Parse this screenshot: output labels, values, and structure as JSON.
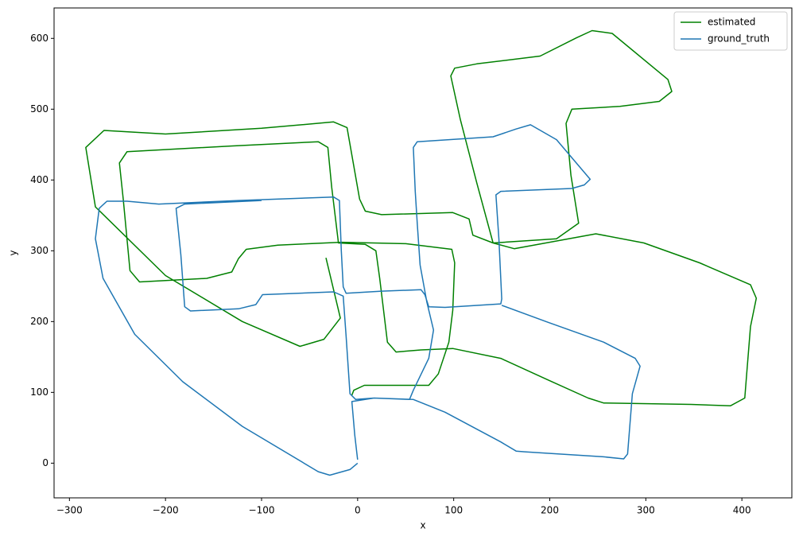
{
  "chart_data": {
    "type": "line",
    "xlabel": "x",
    "ylabel": "y",
    "xlim": [
      -316,
      452
    ],
    "ylim": [
      -49,
      643
    ],
    "xticks": [
      {
        "value": -300,
        "label": "−300"
      },
      {
        "value": -200,
        "label": "−200"
      },
      {
        "value": -100,
        "label": "−100"
      },
      0,
      100,
      200,
      300,
      400
    ],
    "yticks": [
      0,
      100,
      200,
      300,
      400,
      500,
      600
    ],
    "legend": "upper right",
    "series": [
      {
        "name": "estimated",
        "color": "#008000",
        "x": [
          -33,
          -18,
          -35,
          -60,
          -120,
          -200,
          -273,
          -283,
          -264,
          -200,
          -100,
          -25,
          -11,
          2,
          8,
          25,
          99,
          116,
          120,
          141,
          207,
          230,
          222,
          217,
          223,
          273,
          314,
          327,
          323,
          265,
          244,
          228,
          190,
          124,
          101,
          97,
          107,
          124,
          141,
          163,
          248,
          298,
          356,
          409,
          415,
          409,
          405,
          403,
          388,
          347,
          256,
          240,
          199,
          149,
          99,
          66,
          40,
          31,
          23,
          19,
          8,
          -20,
          -27,
          -31,
          -41,
          -132,
          -240,
          -248,
          -244,
          -237,
          -227,
          -157,
          -131,
          -124,
          -116,
          -83,
          -17,
          50,
          98,
          101,
          99,
          95,
          84,
          74,
          57,
          7,
          -4,
          -6
        ],
        "values": [
          290,
          205,
          175,
          165,
          200,
          265,
          362,
          446,
          470,
          465,
          473,
          482,
          474,
          373,
          356,
          351,
          354,
          345,
          322,
          311,
          317,
          339,
          407,
          480,
          500,
          504,
          511,
          525,
          542,
          607,
          611,
          601,
          575,
          564,
          558,
          547,
          485,
          396,
          311,
          303,
          324,
          311,
          283,
          252,
          233,
          193,
          126,
          92,
          81,
          83,
          85,
          92,
          117,
          148,
          162,
          160,
          157,
          171,
          261,
          300,
          309,
          311,
          390,
          446,
          454,
          448,
          440,
          424,
          373,
          272,
          256,
          261,
          270,
          289,
          302,
          308,
          312,
          310,
          302,
          283,
          216,
          171,
          126,
          110,
          110,
          110,
          103,
          96
        ]
      },
      {
        "name": "ground_truth",
        "color": "#1f77b4",
        "x": [
          0,
          -8,
          -29,
          -41,
          -120,
          -182,
          -232,
          -265,
          -273,
          -269,
          -261,
          -240,
          -207,
          -124,
          -25,
          -19,
          -17,
          -15,
          -12,
          25,
          66,
          70,
          74,
          91,
          149,
          150,
          147,
          144,
          149,
          223,
          236,
          242,
          207,
          180,
          165,
          141,
          62,
          58,
          60,
          62,
          65,
          72,
          79,
          74,
          58,
          54,
          17,
          -2,
          -8,
          -12,
          -15,
          -25,
          -99,
          -106,
          -124,
          -174,
          -180,
          -184,
          -189,
          -180,
          -100,
          null,
          150,
          198,
          256,
          289,
          294,
          286,
          281,
          277,
          256,
          174,
          165,
          149,
          91,
          58,
          17,
          -6,
          -3,
          0
        ],
        "values": [
          0,
          -9,
          -17,
          -12,
          52,
          115,
          182,
          261,
          317,
          360,
          370,
          370,
          366,
          371,
          376,
          371,
          300,
          249,
          240,
          243,
          245,
          238,
          221,
          220,
          225,
          232,
          317,
          379,
          384,
          388,
          393,
          401,
          457,
          478,
          472,
          461,
          454,
          446,
          384,
          339,
          280,
          228,
          188,
          148,
          103,
          90,
          92,
          90,
          98,
          180,
          236,
          242,
          238,
          224,
          218,
          215,
          221,
          294,
          360,
          366,
          371,
          null,
          223,
          199,
          171,
          148,
          137,
          98,
          13,
          6,
          9,
          16,
          17,
          30,
          72,
          90,
          92,
          87,
          40,
          5
        ]
      }
    ]
  }
}
